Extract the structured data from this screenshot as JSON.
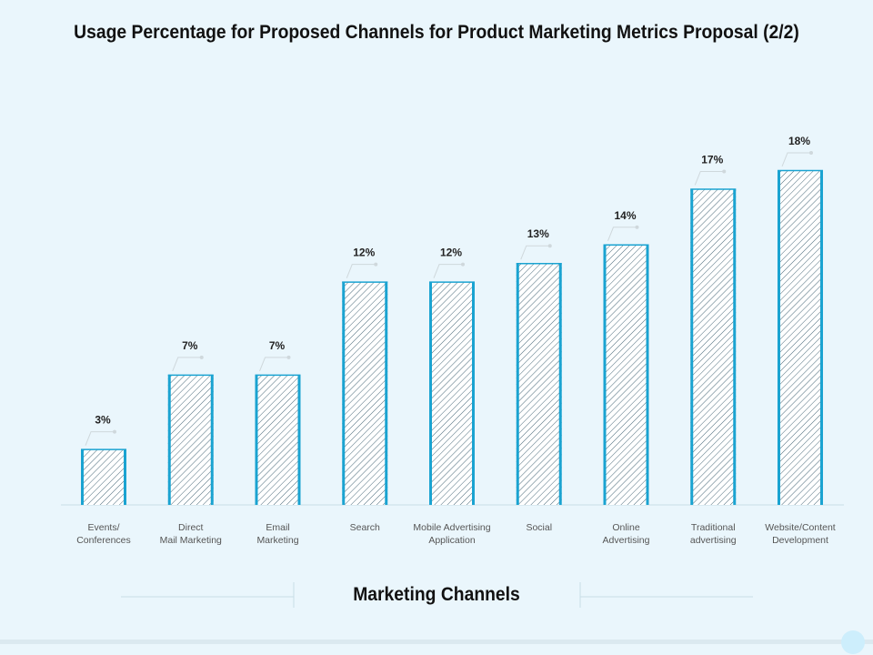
{
  "chart_data": {
    "type": "bar",
    "title": "Usage Percentage for Proposed Channels for Product Marketing Metrics Proposal (2/2)",
    "x_label": "Marketing Channels",
    "categories": [
      "Events/\nConferences",
      "Direct\nMail Marketing",
      "Email\nMarketing",
      "Search",
      "Mobile Advertising\nApplication",
      "Social",
      "Online\nAdvertising",
      "Traditional\nadvertising",
      "Website/Content\nDevelopment"
    ],
    "values": [
      3,
      7,
      7,
      12,
      12,
      13,
      14,
      17,
      18
    ],
    "value_labels": [
      "3%",
      "7%",
      "7%",
      "12%",
      "12%",
      "13%",
      "14%",
      "17%",
      "18%"
    ],
    "color": "#1aa3d1"
  }
}
